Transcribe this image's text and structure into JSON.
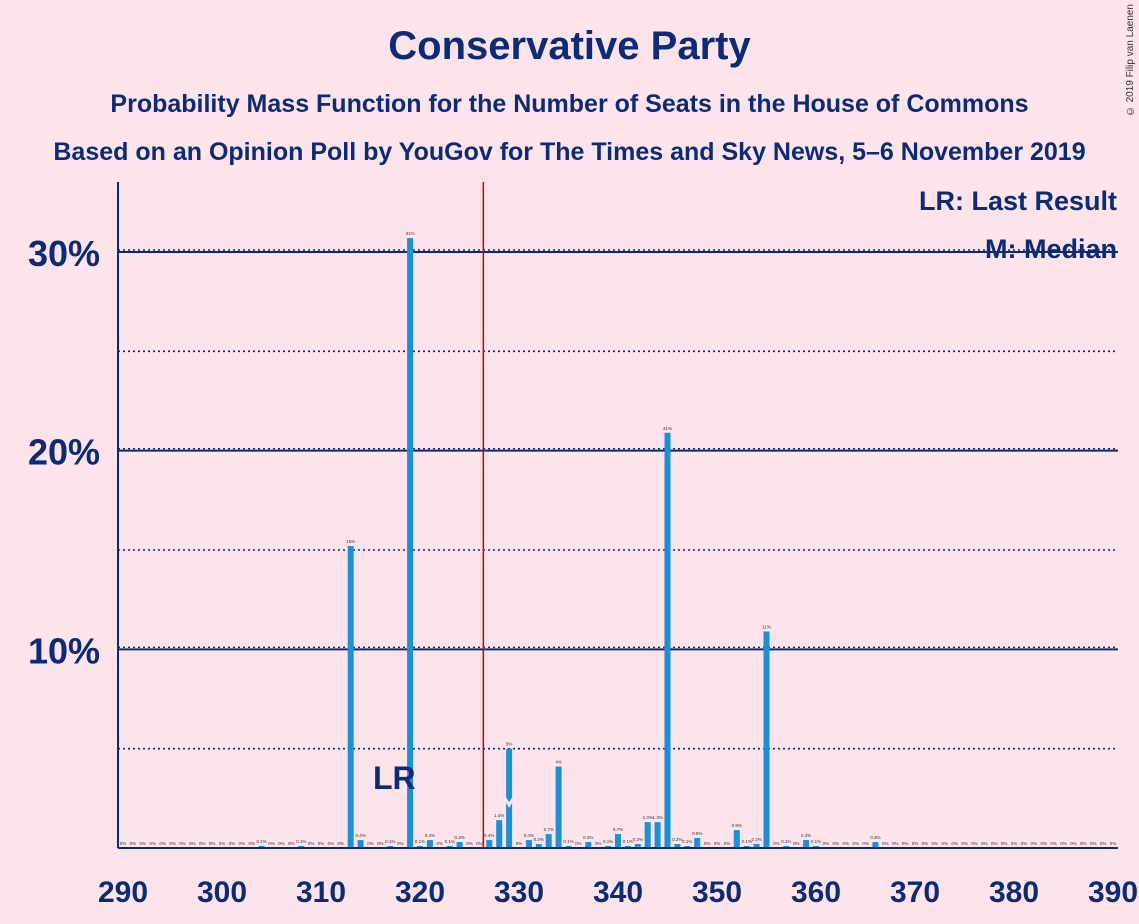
{
  "copyright": "© 2019 Filip van Laenen",
  "chart_data": {
    "type": "bar",
    "title": "Conservative Party",
    "subtitle": "Probability Mass Function for the Number of Seats in the House of Commons",
    "subtitle2": "Based on an Opinion Poll by YouGov for The Times and Sky News, 5–6 November 2019",
    "xlabel": "",
    "ylabel": "",
    "xlim": [
      290,
      390
    ],
    "ylim": [
      0,
      33
    ],
    "x_ticks": [
      290,
      300,
      310,
      320,
      330,
      340,
      350,
      360,
      370,
      380,
      390
    ],
    "y_ticks": [
      {
        "value": 10,
        "label": "10%"
      },
      {
        "value": 20,
        "label": "20%"
      },
      {
        "value": 30,
        "label": "30%"
      }
    ],
    "minor_gridlines": [
      5,
      15,
      25
    ],
    "bar_color": "#1a90d8",
    "majority_line": {
      "x": 326,
      "color": "#cc0000"
    },
    "last_result": {
      "x": 317,
      "label": "LR"
    },
    "median": {
      "x": 329
    },
    "legend": [
      "LR: Last Result",
      "M: Median"
    ],
    "legend_position": "top-right",
    "bars": [
      {
        "x": 290,
        "value": 0,
        "label": "0%"
      },
      {
        "x": 291,
        "value": 0,
        "label": "0%"
      },
      {
        "x": 292,
        "value": 0,
        "label": "0%"
      },
      {
        "x": 293,
        "value": 0,
        "label": "0%"
      },
      {
        "x": 294,
        "value": 0,
        "label": "0%"
      },
      {
        "x": 295,
        "value": 0,
        "label": "0%"
      },
      {
        "x": 296,
        "value": 0,
        "label": "0%"
      },
      {
        "x": 297,
        "value": 0,
        "label": "0%"
      },
      {
        "x": 298,
        "value": 0,
        "label": "0%"
      },
      {
        "x": 299,
        "value": 0,
        "label": "0%"
      },
      {
        "x": 300,
        "value": 0,
        "label": "0%"
      },
      {
        "x": 301,
        "value": 0,
        "label": "0%"
      },
      {
        "x": 302,
        "value": 0,
        "label": "0%"
      },
      {
        "x": 303,
        "value": 0,
        "label": "0%"
      },
      {
        "x": 304,
        "value": 0.1,
        "label": "0.1%"
      },
      {
        "x": 305,
        "value": 0,
        "label": "0%"
      },
      {
        "x": 306,
        "value": 0,
        "label": "0%"
      },
      {
        "x": 307,
        "value": 0,
        "label": "0%"
      },
      {
        "x": 308,
        "value": 0.1,
        "label": "0.1%"
      },
      {
        "x": 309,
        "value": 0,
        "label": "0%"
      },
      {
        "x": 310,
        "value": 0,
        "label": "0%"
      },
      {
        "x": 311,
        "value": 0,
        "label": "0%"
      },
      {
        "x": 312,
        "value": 0,
        "label": "0%"
      },
      {
        "x": 313,
        "value": 15.2,
        "label": "15%"
      },
      {
        "x": 314,
        "value": 0.4,
        "label": "0.4%"
      },
      {
        "x": 315,
        "value": 0,
        "label": "0%"
      },
      {
        "x": 316,
        "value": 0,
        "label": "0%"
      },
      {
        "x": 317,
        "value": 0.1,
        "label": "0.1%"
      },
      {
        "x": 318,
        "value": 0,
        "label": "0%"
      },
      {
        "x": 319,
        "value": 30.7,
        "label": "31%"
      },
      {
        "x": 320,
        "value": 0.1,
        "label": "0.1%"
      },
      {
        "x": 321,
        "value": 0.4,
        "label": "0.4%"
      },
      {
        "x": 322,
        "value": 0,
        "label": "0%"
      },
      {
        "x": 323,
        "value": 0.1,
        "label": "0.1%"
      },
      {
        "x": 324,
        "value": 0.3,
        "label": "0.3%"
      },
      {
        "x": 325,
        "value": 0,
        "label": "0%"
      },
      {
        "x": 326,
        "value": 0,
        "label": "0%"
      },
      {
        "x": 327,
        "value": 0.4,
        "label": "0.4%"
      },
      {
        "x": 328,
        "value": 1.4,
        "label": "1.4%"
      },
      {
        "x": 329,
        "value": 5,
        "label": "5%"
      },
      {
        "x": 330,
        "value": 0,
        "label": "0%"
      },
      {
        "x": 331,
        "value": 0.4,
        "label": "0.4%"
      },
      {
        "x": 332,
        "value": 0.2,
        "label": "0.2%"
      },
      {
        "x": 333,
        "value": 0.7,
        "label": "0.7%"
      },
      {
        "x": 334,
        "value": 4.1,
        "label": "4%"
      },
      {
        "x": 335,
        "value": 0.1,
        "label": "0.1%"
      },
      {
        "x": 336,
        "value": 0,
        "label": "0%"
      },
      {
        "x": 337,
        "value": 0.3,
        "label": "0.3%"
      },
      {
        "x": 338,
        "value": 0,
        "label": "0%"
      },
      {
        "x": 339,
        "value": 0.1,
        "label": "0.1%"
      },
      {
        "x": 340,
        "value": 0.7,
        "label": "0.7%"
      },
      {
        "x": 341,
        "value": 0.1,
        "label": "0.1%"
      },
      {
        "x": 342,
        "value": 0.2,
        "label": "0.2%"
      },
      {
        "x": 343,
        "value": 1.3,
        "label": "1.3%"
      },
      {
        "x": 344,
        "value": 1.3,
        "label": "1.3%"
      },
      {
        "x": 345,
        "value": 20.9,
        "label": "21%"
      },
      {
        "x": 346,
        "value": 0.2,
        "label": "0.2%"
      },
      {
        "x": 347,
        "value": 0.1,
        "label": "0.1%"
      },
      {
        "x": 348,
        "value": 0.5,
        "label": "0.5%"
      },
      {
        "x": 349,
        "value": 0,
        "label": "0%"
      },
      {
        "x": 350,
        "value": 0,
        "label": "0%"
      },
      {
        "x": 351,
        "value": 0,
        "label": "0%"
      },
      {
        "x": 352,
        "value": 0.9,
        "label": "0.9%"
      },
      {
        "x": 353,
        "value": 0.1,
        "label": "0.1%"
      },
      {
        "x": 354,
        "value": 0.2,
        "label": "0.2%"
      },
      {
        "x": 355,
        "value": 10.9,
        "label": "11%"
      },
      {
        "x": 356,
        "value": 0,
        "label": "0%"
      },
      {
        "x": 357,
        "value": 0.1,
        "label": "0.1%"
      },
      {
        "x": 358,
        "value": 0,
        "label": "0%"
      },
      {
        "x": 359,
        "value": 0.4,
        "label": "0.4%"
      },
      {
        "x": 360,
        "value": 0.1,
        "label": "0.1%"
      },
      {
        "x": 361,
        "value": 0,
        "label": "0%"
      },
      {
        "x": 362,
        "value": 0,
        "label": "0%"
      },
      {
        "x": 363,
        "value": 0,
        "label": "0%"
      },
      {
        "x": 364,
        "value": 0,
        "label": "0%"
      },
      {
        "x": 365,
        "value": 0,
        "label": "0%"
      },
      {
        "x": 366,
        "value": 0.3,
        "label": "0.3%"
      },
      {
        "x": 367,
        "value": 0,
        "label": "0%"
      },
      {
        "x": 368,
        "value": 0,
        "label": "0%"
      },
      {
        "x": 369,
        "value": 0,
        "label": "0%"
      },
      {
        "x": 370,
        "value": 0,
        "label": "0%"
      },
      {
        "x": 371,
        "value": 0,
        "label": "0%"
      },
      {
        "x": 372,
        "value": 0,
        "label": "0%"
      },
      {
        "x": 373,
        "value": 0,
        "label": "0%"
      },
      {
        "x": 374,
        "value": 0,
        "label": "0%"
      },
      {
        "x": 375,
        "value": 0,
        "label": "0%"
      },
      {
        "x": 376,
        "value": 0,
        "label": "0%"
      },
      {
        "x": 377,
        "value": 0,
        "label": "0%"
      },
      {
        "x": 378,
        "value": 0,
        "label": "0%"
      },
      {
        "x": 379,
        "value": 0,
        "label": "0%"
      },
      {
        "x": 380,
        "value": 0,
        "label": "0%"
      },
      {
        "x": 381,
        "value": 0,
        "label": "0%"
      },
      {
        "x": 382,
        "value": 0,
        "label": "0%"
      },
      {
        "x": 383,
        "value": 0,
        "label": "0%"
      },
      {
        "x": 384,
        "value": 0,
        "label": "0%"
      },
      {
        "x": 385,
        "value": 0,
        "label": "0%"
      },
      {
        "x": 386,
        "value": 0,
        "label": "0%"
      },
      {
        "x": 387,
        "value": 0,
        "label": "0%"
      },
      {
        "x": 388,
        "value": 0,
        "label": "0%"
      },
      {
        "x": 389,
        "value": 0,
        "label": "0%"
      },
      {
        "x": 390,
        "value": 0,
        "label": "0%"
      }
    ]
  }
}
